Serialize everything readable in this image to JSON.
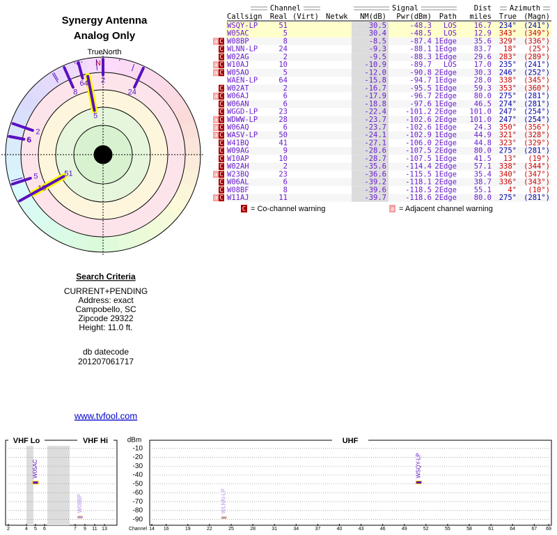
{
  "header": {
    "title": "Synergy Antenna",
    "subtitle": "Analog Only"
  },
  "polar": {
    "north_label": "TrueNorth",
    "north_marker": "N"
  },
  "search": {
    "heading": "Search Criteria",
    "lines": [
      "CURRENT+PENDING",
      "Address: exact",
      "Campobello, SC",
      "Zipcode 29322",
      "Height: 11.0 ft."
    ],
    "datecode_label": "db datecode",
    "datecode": "201207061717",
    "link": "www.tvfool.com"
  },
  "table": {
    "group_headers": {
      "channel": "Channel",
      "signal": "Signal",
      "dist": "Dist",
      "azimuth": "Azimuth"
    },
    "columns": {
      "callsign": "Callsign",
      "real": "Real",
      "virt": "(Virt)",
      "netwk": "Netwk",
      "nm": "NM(dB)",
      "pwr": "Pwr(dBm)",
      "path": "Path",
      "dist": "miles",
      "az_true": "True",
      "az_magn": "(Magn)"
    },
    "rows": [
      {
        "callsign": "WSQY-LP",
        "real": "51",
        "nm": "30.5",
        "pwr": "-48.3",
        "path": "LOS",
        "dist": "16.7",
        "az_true": "234°",
        "az_magn": "(241°)",
        "az_color": "#0000aa"
      },
      {
        "callsign": "W05AC",
        "real": "5",
        "nm": "30.4",
        "pwr": "-48.5",
        "path": "LOS",
        "dist": "12.9",
        "az_true": "343°",
        "az_magn": "(349°)",
        "az_color": "#cc0000"
      },
      {
        "callsign": "W08BP",
        "real": "8",
        "nm": "-8.5",
        "pwr": "-87.4",
        "path": "1Edge",
        "dist": "35.6",
        "az_true": "329°",
        "az_magn": "(336°)",
        "az_color": "#cc0000",
        "warnings": [
          "a",
          "C"
        ]
      },
      {
        "callsign": "WLNN-LP",
        "real": "24",
        "nm": "-9.3",
        "pwr": "-88.1",
        "path": "1Edge",
        "dist": "83.7",
        "az_true": "18°",
        "az_magn": "(25°)",
        "az_color": "#cc0000",
        "warnings": [
          "C"
        ]
      },
      {
        "callsign": "W02AG",
        "real": "2",
        "nm": "-9.5",
        "pwr": "-88.3",
        "path": "1Edge",
        "dist": "29.6",
        "az_true": "283°",
        "az_magn": "(289°)",
        "az_color": "#cc0000",
        "warnings": [
          "C"
        ]
      },
      {
        "callsign": "W10AJ",
        "real": "10",
        "nm": "-10.9",
        "pwr": "-89.7",
        "path": "LOS",
        "dist": "17.0",
        "az_true": "235°",
        "az_magn": "(241°)",
        "az_color": "#0000aa",
        "warnings": [
          "a",
          "C"
        ]
      },
      {
        "callsign": "W05AO",
        "real": "5",
        "nm": "-12.0",
        "pwr": "-90.8",
        "path": "2Edge",
        "dist": "30.3",
        "az_true": "246°",
        "az_magn": "(252°)",
        "az_color": "#0000aa",
        "warnings": [
          "a",
          "C"
        ]
      },
      {
        "callsign": "WAEN-LP",
        "real": "64",
        "nm": "-15.8",
        "pwr": "-94.7",
        "path": "1Edge",
        "dist": "28.0",
        "az_true": "338°",
        "az_magn": "(345°)",
        "az_color": "#cc0000"
      },
      {
        "callsign": "W02AT",
        "real": "2",
        "nm": "-16.7",
        "pwr": "-95.5",
        "path": "1Edge",
        "dist": "59.3",
        "az_true": "353°",
        "az_magn": "(360°)",
        "az_color": "#cc0000",
        "warnings": [
          "C"
        ]
      },
      {
        "callsign": "W06AJ",
        "real": "6",
        "nm": "-17.9",
        "pwr": "-96.7",
        "path": "2Edge",
        "dist": "80.0",
        "az_true": "275°",
        "az_magn": "(281°)",
        "az_color": "#0000aa",
        "warnings": [
          "a",
          "C"
        ]
      },
      {
        "callsign": "W06AN",
        "real": "6",
        "nm": "-18.8",
        "pwr": "-97.6",
        "path": "1Edge",
        "dist": "46.5",
        "az_true": "274°",
        "az_magn": "(281°)",
        "az_color": "#0000aa",
        "warnings": [
          "C"
        ]
      },
      {
        "callsign": "WGGD-LP",
        "real": "23",
        "nm": "-22.4",
        "pwr": "-101.2",
        "path": "2Edge",
        "dist": "101.0",
        "az_true": "247°",
        "az_magn": "(254°)",
        "az_color": "#0000aa",
        "warnings": [
          "C"
        ]
      },
      {
        "callsign": "WDWW-LP",
        "real": "28",
        "nm": "-23.7",
        "pwr": "-102.6",
        "path": "2Edge",
        "dist": "101.0",
        "az_true": "247°",
        "az_magn": "(254°)",
        "az_color": "#0000aa",
        "warnings": [
          "a",
          "C"
        ]
      },
      {
        "callsign": "W06AQ",
        "real": "6",
        "nm": "-23.7",
        "pwr": "-102.6",
        "path": "1Edge",
        "dist": "24.3",
        "az_true": "350°",
        "az_magn": "(356°)",
        "az_color": "#cc0000",
        "warnings": [
          "a",
          "C"
        ]
      },
      {
        "callsign": "WASV-LP",
        "real": "50",
        "nm": "-24.1",
        "pwr": "-102.9",
        "path": "1Edge",
        "dist": "44.9",
        "az_true": "321°",
        "az_magn": "(328°)",
        "az_color": "#cc0000",
        "warnings": [
          "a",
          "C"
        ]
      },
      {
        "callsign": "W41BQ",
        "real": "41",
        "nm": "-27.1",
        "pwr": "-106.0",
        "path": "2Edge",
        "dist": "44.8",
        "az_true": "323°",
        "az_magn": "(329°)",
        "az_color": "#cc0000",
        "warnings": [
          "C"
        ]
      },
      {
        "callsign": "W09AG",
        "real": "9",
        "nm": "-28.6",
        "pwr": "-107.5",
        "path": "2Edge",
        "dist": "80.0",
        "az_true": "275°",
        "az_magn": "(281°)",
        "az_color": "#0000aa",
        "warnings": [
          "C"
        ]
      },
      {
        "callsign": "W10AP",
        "real": "10",
        "nm": "-28.7",
        "pwr": "-107.5",
        "path": "1Edge",
        "dist": "41.5",
        "az_true": "13°",
        "az_magn": "(19°)",
        "az_color": "#cc0000",
        "warnings": [
          "C"
        ]
      },
      {
        "callsign": "W02AH",
        "real": "2",
        "nm": "-35.6",
        "pwr": "-114.4",
        "path": "2Edge",
        "dist": "57.1",
        "az_true": "338°",
        "az_magn": "(344°)",
        "az_color": "#cc0000",
        "warnings": [
          "C"
        ]
      },
      {
        "callsign": "W23BQ",
        "real": "23",
        "nm": "-36.6",
        "pwr": "-115.5",
        "path": "1Edge",
        "dist": "35.4",
        "az_true": "340°",
        "az_magn": "(347°)",
        "az_color": "#cc0000",
        "warnings": [
          "a",
          "C"
        ]
      },
      {
        "callsign": "W06AL",
        "real": "6",
        "nm": "-39.2",
        "pwr": "-118.1",
        "path": "2Edge",
        "dist": "38.7",
        "az_true": "336°",
        "az_magn": "(343°)",
        "az_color": "#cc0000",
        "warnings": [
          "C"
        ]
      },
      {
        "callsign": "W08BF",
        "real": "8",
        "nm": "-39.6",
        "pwr": "-118.5",
        "path": "2Edge",
        "dist": "55.1",
        "az_true": "4°",
        "az_magn": "(10°)",
        "az_color": "#cc0000",
        "warnings": [
          "C"
        ]
      },
      {
        "callsign": "W11AJ",
        "real": "11",
        "nm": "-39.7",
        "pwr": "-118.6",
        "path": "2Edge",
        "dist": "80.0",
        "az_true": "275°",
        "az_magn": "(281°)",
        "az_color": "#0000aa",
        "warnings": [
          "a",
          "C"
        ]
      }
    ],
    "legend": [
      {
        "glyph": "C",
        "text": "= Co-channel warning",
        "color": "#aa0000"
      },
      {
        "glyph": "a",
        "text": "= Adjacent channel warning",
        "color": "#f4a0a0"
      }
    ]
  },
  "spectrum": {
    "y_label": "dBm",
    "x_label": "Channel",
    "ylim": [
      -95,
      0
    ],
    "yticks": [
      -10,
      -20,
      -30,
      -40,
      -50,
      -60,
      -70,
      -80,
      -90
    ],
    "bands": [
      {
        "label": "VHF Lo",
        "ticks": [
          2,
          4,
          5,
          6
        ]
      },
      {
        "label": "VHF Hi",
        "ticks": [
          7,
          9,
          11,
          13
        ]
      },
      {
        "label": "UHF",
        "ticks": [
          14,
          16,
          19,
          22,
          25,
          28,
          31,
          34,
          37,
          40,
          43,
          46,
          49,
          52,
          55,
          58,
          61,
          64,
          67,
          69
        ]
      }
    ],
    "stations": [
      "WSQY-LP",
      "W05AC",
      "W08BP",
      "WLNN-LP"
    ]
  }
}
